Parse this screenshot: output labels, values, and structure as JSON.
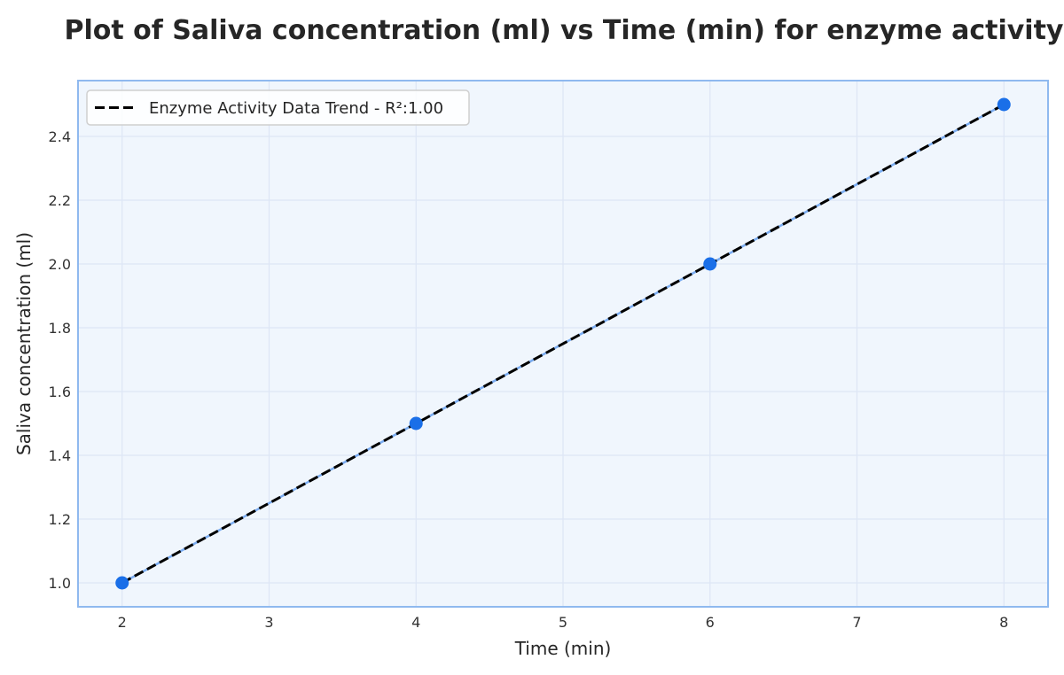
{
  "chart_data": {
    "type": "line",
    "title": "Plot of Saliva concentration (ml) vs Time (min) for enzyme activity",
    "xlabel": "Time (min)",
    "ylabel": "Saliva concentration (ml)",
    "x": [
      2,
      4,
      6,
      8
    ],
    "series": [
      {
        "values": [
          1.0,
          1.5,
          2.0,
          2.5
        ],
        "color": "#1a6fe8",
        "marker": "circle"
      }
    ],
    "trendline": {
      "name": "Enzyme Activity Data Trend - R²:1.00",
      "style": "dashed",
      "color": "#000000",
      "x": [
        2,
        8
      ],
      "values": [
        1.0,
        2.5
      ]
    },
    "xlim": [
      1.7,
      8.3
    ],
    "ylim": [
      0.925,
      2.575
    ],
    "xticks": [
      2,
      3,
      4,
      5,
      6,
      7,
      8
    ],
    "yticks": [
      1.0,
      1.2,
      1.4,
      1.6,
      1.8,
      2.0,
      2.2,
      2.4
    ],
    "ytick_decimals": 1,
    "grid": true,
    "legend_position": "top-left",
    "colors": {
      "plot_background": "#f0f6fd",
      "plot_border": "#8fb9ef",
      "grid": "#dde6f5",
      "point": "#1a6fe8",
      "trend": "#000000"
    }
  }
}
